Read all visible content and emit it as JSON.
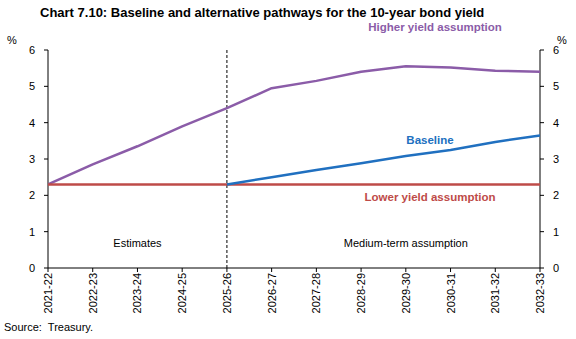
{
  "chart_data": {
    "type": "line",
    "title": "Chart 7.10: Baseline and alternative pathways for the 10-year bond yield",
    "y_label": "%",
    "source": "Source:  Treasury.",
    "categories": [
      "2021-22",
      "2022-23",
      "2023-24",
      "2024-25",
      "2025-26",
      "2026-27",
      "2027-28",
      "2028-29",
      "2029-30",
      "2030-31",
      "2031-32",
      "2032-33"
    ],
    "series": [
      {
        "name": "Higher yield assumption",
        "color": "#8b5ca8",
        "values": [
          2.3,
          2.85,
          3.35,
          3.9,
          4.4,
          4.95,
          5.15,
          5.4,
          5.55,
          5.52,
          5.43,
          5.4
        ]
      },
      {
        "name": "Lower yield assumption",
        "color": "#be4b48",
        "values": [
          2.3,
          2.3,
          2.3,
          2.3,
          2.3,
          2.3,
          2.3,
          2.3,
          2.3,
          2.3,
          2.3,
          2.3
        ]
      },
      {
        "name": "Baseline",
        "color": "#2070c0",
        "values": [
          null,
          null,
          null,
          null,
          2.3,
          2.5,
          2.7,
          2.88,
          3.08,
          3.25,
          3.47,
          3.65
        ]
      }
    ],
    "annotations": [
      {
        "text": "Estimates",
        "x": "2023-24"
      },
      {
        "text": "Medium-term assumption",
        "x": "2029-30"
      }
    ],
    "vline": {
      "x": "2025-26",
      "line_style": "dashed"
    },
    "ylim": [
      0,
      6
    ],
    "yticks": [
      0,
      1,
      2,
      3,
      4,
      5,
      6
    ],
    "grid": false
  }
}
